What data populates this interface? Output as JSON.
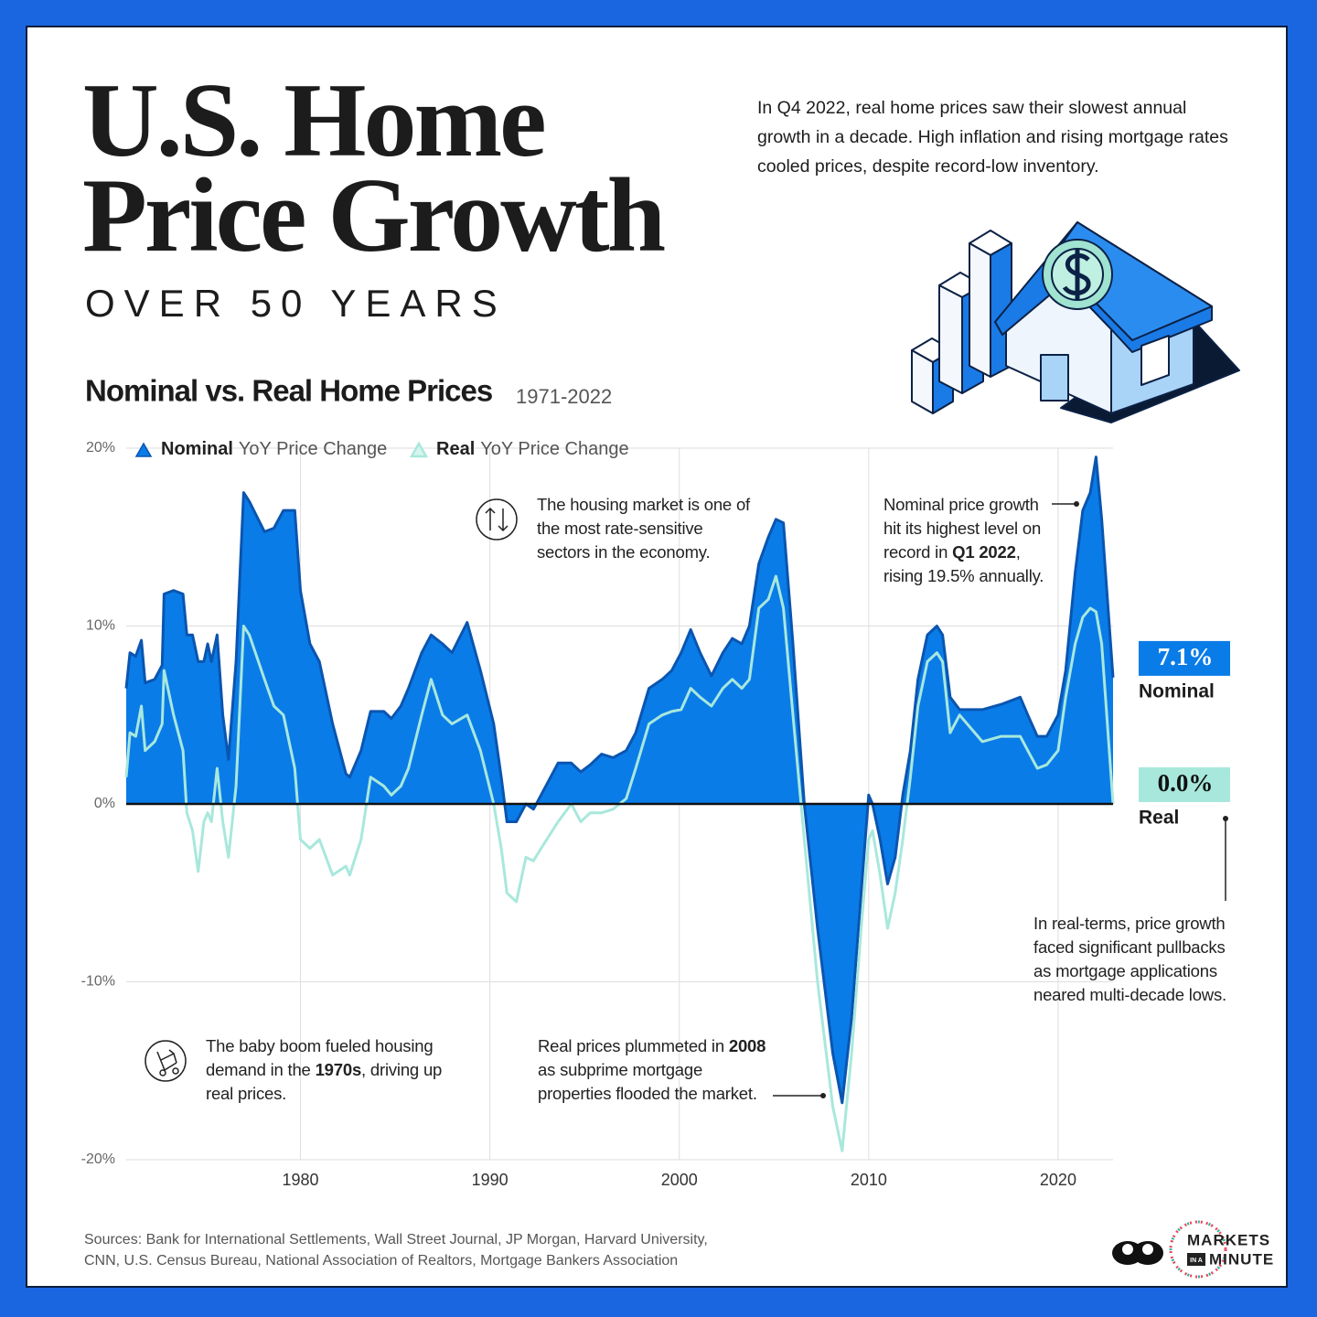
{
  "header": {
    "title": "U.S. Home Price Growth",
    "subtitle": "OVER 50 YEARS",
    "intro": "In Q4 2022, real home prices saw their slowest annual growth in a decade. High inflation and rising mortgage rates cooled prices, despite record-low inventory."
  },
  "chart_data": {
    "type": "area",
    "title": "Nominal vs. Real Home Prices",
    "subtitle": "1971-2022",
    "legend_suffix": "YoY Price Change",
    "x": [
      1970.8,
      1971.0,
      1971.3,
      1971.6,
      1971.8,
      1972.3,
      1972.7,
      1972.8,
      1973.3,
      1973.8,
      1974.0,
      1974.3,
      1974.6,
      1974.9,
      1975.1,
      1975.3,
      1975.6,
      1975.9,
      1976.2,
      1976.6,
      1977.0,
      1977.3,
      1978.1,
      1978.6,
      1979.1,
      1979.7,
      1980.0,
      1980.5,
      1981.0,
      1981.7,
      1982.4,
      1982.6,
      1983.2,
      1983.7,
      1984.4,
      1984.8,
      1985.3,
      1985.7,
      1986.4,
      1986.9,
      1987.5,
      1988.0,
      1988.8,
      1989.5,
      1990.2,
      1990.6,
      1990.9,
      1991.4,
      1991.9,
      1992.3,
      1992.7,
      1993.6,
      1994.3,
      1994.8,
      1995.3,
      1995.9,
      1996.5,
      1997.2,
      1997.7,
      1998.4,
      1999.1,
      1999.6,
      2000.1,
      2000.6,
      2001.1,
      2001.7,
      2002.3,
      2002.8,
      2003.3,
      2003.7,
      2004.2,
      2004.7,
      2005.1,
      2005.5,
      2006.0,
      2006.6,
      2007.3,
      2008.1,
      2008.6,
      2009.1,
      2009.6,
      2010.0,
      2010.2,
      2010.6,
      2011.0,
      2011.4,
      2011.8,
      2012.2,
      2012.6,
      2013.1,
      2013.6,
      2013.9,
      2014.3,
      2014.8,
      2016.0,
      2017.0,
      2018.0,
      2018.4,
      2018.9,
      2019.4,
      2020.0,
      2020.4,
      2020.9,
      2021.3,
      2021.7,
      2022.0,
      2022.3,
      2022.9
    ],
    "xlim": [
      1970.8,
      2022.9
    ],
    "xticks": [
      1980,
      1990,
      2000,
      2010,
      2020
    ],
    "ylim": [
      -20,
      20
    ],
    "yticks": [
      {
        "value": -20,
        "label": "-20%"
      },
      {
        "value": -10,
        "label": "-10%"
      },
      {
        "value": 0,
        "label": "0%"
      },
      {
        "value": 10,
        "label": "10%"
      },
      {
        "value": 20,
        "label": "20%"
      }
    ],
    "grid": true,
    "series": [
      {
        "name": "Nominal",
        "color": "#0a7ce8",
        "line_color": "#0a55b0",
        "label_color": "#ffffff",
        "fill": true,
        "values": [
          6.5,
          8.5,
          8.3,
          9.2,
          6.8,
          7.0,
          7.8,
          11.8,
          12.0,
          11.8,
          9.5,
          9.5,
          8.0,
          8.0,
          9.0,
          8.0,
          9.5,
          5.0,
          2.5,
          8.0,
          17.5,
          17.0,
          15.3,
          15.5,
          16.5,
          16.5,
          12.0,
          9.0,
          8.0,
          4.5,
          1.7,
          1.5,
          3.0,
          5.2,
          5.2,
          4.8,
          5.5,
          6.5,
          8.5,
          9.5,
          9.0,
          8.5,
          10.2,
          7.5,
          4.5,
          1.5,
          -1.0,
          -1.0,
          0.0,
          -0.3,
          0.5,
          2.3,
          2.3,
          1.8,
          2.2,
          2.8,
          2.6,
          3.0,
          4.0,
          6.5,
          7.0,
          7.5,
          8.5,
          9.8,
          8.5,
          7.2,
          8.5,
          9.3,
          9.0,
          10.0,
          13.5,
          15.0,
          16.0,
          15.8,
          9.0,
          0.0,
          -7.0,
          -14.0,
          -16.8,
          -12.0,
          -5.0,
          0.5,
          0.0,
          -2.0,
          -4.5,
          -3.0,
          0.5,
          3.0,
          7.0,
          9.5,
          10.0,
          9.5,
          6.0,
          5.3,
          5.3,
          5.6,
          6.0,
          5.0,
          3.8,
          3.8,
          5.0,
          7.5,
          13.0,
          16.5,
          17.5,
          19.5,
          16.0,
          7.1
        ],
        "value_labels": [
          null,
          null,
          null,
          null,
          null,
          null,
          null,
          null,
          null,
          null,
          null,
          null,
          null,
          null,
          null,
          null,
          null,
          null,
          null,
          null,
          null,
          null,
          null,
          null,
          null,
          null,
          null,
          null,
          null,
          null,
          null,
          null,
          null,
          null,
          null,
          null,
          null,
          null,
          null,
          null,
          null,
          null,
          null,
          null,
          null,
          null,
          null,
          null,
          null,
          null,
          null,
          null,
          null,
          null,
          null,
          null,
          null,
          null,
          null,
          null,
          null,
          null,
          null,
          null,
          null,
          null,
          null,
          null,
          null,
          null,
          null,
          null,
          null,
          null,
          null,
          null,
          null,
          null,
          null,
          null,
          null,
          null,
          null,
          null,
          null,
          null,
          null,
          null,
          null,
          null,
          null,
          null,
          null,
          null,
          null,
          null,
          null,
          null,
          null,
          null,
          null,
          null,
          null,
          null,
          null,
          null,
          null,
          "7.1%"
        ]
      },
      {
        "name": "Real",
        "color": "#a8e8dc",
        "line_color": "#a8e8dc",
        "label_color": "#111111",
        "fill": false,
        "values": [
          1.5,
          4.0,
          3.8,
          5.5,
          3.0,
          3.5,
          4.5,
          7.5,
          5.0,
          3.0,
          -0.5,
          -1.5,
          -3.8,
          -1.0,
          -0.5,
          -1.0,
          2.0,
          -1.0,
          -3.0,
          1.0,
          10.0,
          9.5,
          7.0,
          5.5,
          5.0,
          2.0,
          -2.0,
          -2.5,
          -2.0,
          -4.0,
          -3.5,
          -4.0,
          -2.0,
          1.5,
          1.0,
          0.5,
          1.0,
          2.0,
          5.0,
          7.0,
          5.0,
          4.5,
          5.0,
          3.0,
          0.0,
          -2.5,
          -5.0,
          -5.5,
          -3.0,
          -3.2,
          -2.5,
          -1.0,
          0.0,
          -1.0,
          -0.5,
          -0.5,
          -0.3,
          0.3,
          2.0,
          4.5,
          5.0,
          5.2,
          5.3,
          6.5,
          6.0,
          5.5,
          6.5,
          7.0,
          6.5,
          7.0,
          11.0,
          11.5,
          12.8,
          11.0,
          5.0,
          -2.0,
          -10.0,
          -17.0,
          -19.5,
          -14.0,
          -7.0,
          -2.0,
          -1.5,
          -4.0,
          -7.0,
          -5.0,
          -2.0,
          1.5,
          5.5,
          8.0,
          8.5,
          8.0,
          4.0,
          5.0,
          3.5,
          3.8,
          3.8,
          3.0,
          2.0,
          2.2,
          3.0,
          6.0,
          9.0,
          10.5,
          11.0,
          10.8,
          9.0,
          0.0
        ],
        "value_labels": [
          null,
          null,
          null,
          null,
          null,
          null,
          null,
          null,
          null,
          null,
          null,
          null,
          null,
          null,
          null,
          null,
          null,
          null,
          null,
          null,
          null,
          null,
          null,
          null,
          null,
          null,
          null,
          null,
          null,
          null,
          null,
          null,
          null,
          null,
          null,
          null,
          null,
          null,
          null,
          null,
          null,
          null,
          null,
          null,
          null,
          null,
          null,
          null,
          null,
          null,
          null,
          null,
          null,
          null,
          null,
          null,
          null,
          null,
          null,
          null,
          null,
          null,
          null,
          null,
          null,
          null,
          null,
          null,
          null,
          null,
          null,
          null,
          null,
          null,
          null,
          null,
          null,
          null,
          null,
          null,
          null,
          null,
          null,
          null,
          null,
          null,
          null,
          null,
          null,
          null,
          null,
          null,
          null,
          null,
          null,
          null,
          null,
          null,
          null,
          null,
          null,
          null,
          null,
          null,
          null,
          null,
          null,
          "0.0%"
        ]
      }
    ],
    "annotations": [
      {
        "parts": [
          "The housing market is one of the most rate-sensitive sectors in the economy."
        ],
        "bold": []
      },
      {
        "parts": [
          "Nominal price growth hit its highest level on record in ",
          "Q1 2022",
          ", rising 19.5% annually."
        ],
        "bold": [
          1
        ]
      },
      {
        "parts": [
          "In real-terms, price growth faced significant pullbacks as mortgage applications neared multi-decade lows."
        ],
        "bold": []
      },
      {
        "parts": [
          "The baby boom fueled housing demand in the ",
          "1970s",
          ", driving up real prices."
        ],
        "bold": [
          1
        ]
      },
      {
        "parts": [
          "Real prices plummeted in ",
          "2008",
          " as subprime mortgage properties flooded the market."
        ],
        "bold": [
          1
        ]
      }
    ]
  },
  "sources": "Sources: Bank for International Settlements, Wall Street Journal, JP Morgan, Harvard University, CNN, U.S. Census Bureau, National Association of Realtors, Mortgage Bankers Association",
  "brand": [
    "MARKETS",
    "IN A",
    "MINUTE"
  ]
}
